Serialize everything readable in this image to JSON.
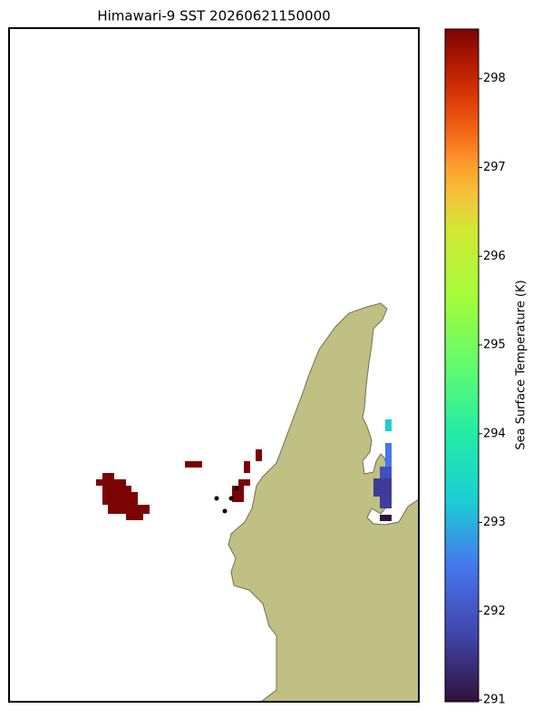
{
  "chart_data": {
    "type": "map",
    "title": "Himawari-9 SST 20260621150000",
    "colorbar": {
      "label": "Sea Surface Temperature (K)",
      "lim": [
        290.98,
        298.56
      ],
      "ticks": [
        291,
        292,
        293,
        294,
        295,
        296,
        297,
        298
      ]
    }
  }
}
